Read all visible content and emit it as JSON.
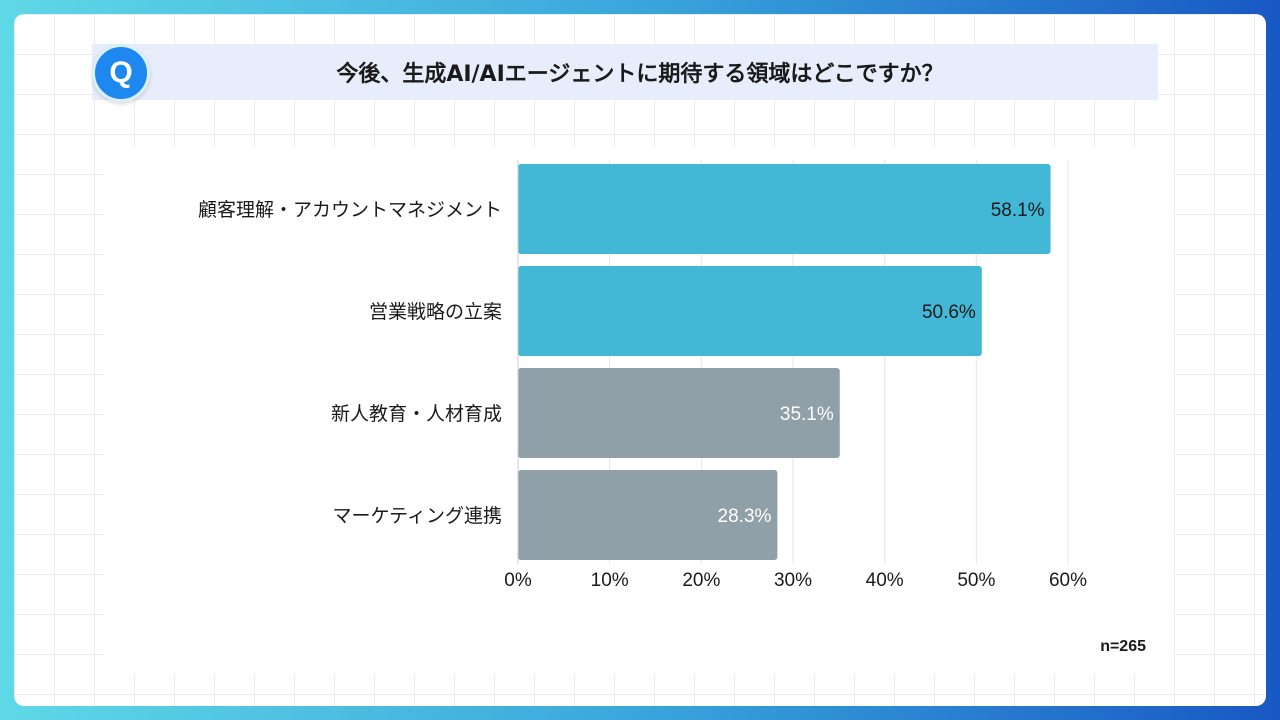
{
  "header": {
    "badge": "Q",
    "title": "今後、生成AI/AIエージェントに期待する領域はどこですか？"
  },
  "chart_data": {
    "type": "bar",
    "orientation": "horizontal",
    "title": "今後、生成AI/AIエージェントに期待する領域はどこですか？",
    "categories": [
      "顧客理解・アカウントマネジメント",
      "営業戦略の立案",
      "新人教育・人材育成",
      "マーケティング連携"
    ],
    "values": [
      58.1,
      50.6,
      35.1,
      28.3
    ],
    "value_labels": [
      "58.1%",
      "50.6%",
      "35.1%",
      "28.3%"
    ],
    "bar_colors": [
      "#43b8d6",
      "#43b8d6",
      "#8fa0a8",
      "#8fa0a8"
    ],
    "label_colors": [
      "#1a1a1a",
      "#1a1a1a",
      "#ffffff",
      "#ffffff"
    ],
    "xlim": [
      0,
      60
    ],
    "xticks": [
      0,
      10,
      20,
      30,
      40,
      50,
      60
    ],
    "xtick_labels": [
      "0%",
      "10%",
      "20%",
      "30%",
      "40%",
      "50%",
      "60%"
    ],
    "xlabel": "",
    "ylabel": "",
    "grid": "vertical"
  },
  "footer": {
    "sample_size": "n=265"
  }
}
